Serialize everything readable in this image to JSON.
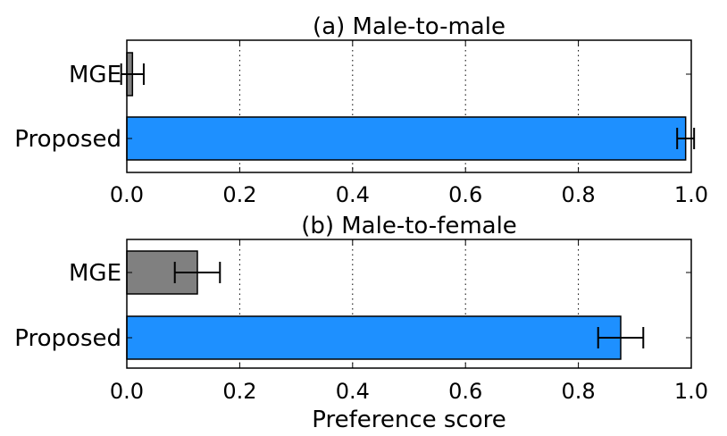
{
  "chart_data": [
    {
      "type": "bar",
      "orientation": "horizontal",
      "title": "(a) Male-to-male",
      "categories": [
        "MGE",
        "Proposed"
      ],
      "values": [
        0.01,
        0.99
      ],
      "errors": [
        0.02,
        0.015
      ],
      "colors": [
        "#808080",
        "#1e90ff"
      ],
      "xlim": [
        0.0,
        1.0
      ],
      "xticks": [
        "0.0",
        "0.2",
        "0.4",
        "0.6",
        "0.8",
        "1.0"
      ],
      "grid": true,
      "xlabel": ""
    },
    {
      "type": "bar",
      "orientation": "horizontal",
      "title": "(b) Male-to-female",
      "categories": [
        "MGE",
        "Proposed"
      ],
      "values": [
        0.125,
        0.875
      ],
      "errors": [
        0.04,
        0.04
      ],
      "colors": [
        "#808080",
        "#1e90ff"
      ],
      "xlim": [
        0.0,
        1.0
      ],
      "xticks": [
        "0.0",
        "0.2",
        "0.4",
        "0.6",
        "0.8",
        "1.0"
      ],
      "grid": true,
      "xlabel": "Preference score"
    }
  ]
}
